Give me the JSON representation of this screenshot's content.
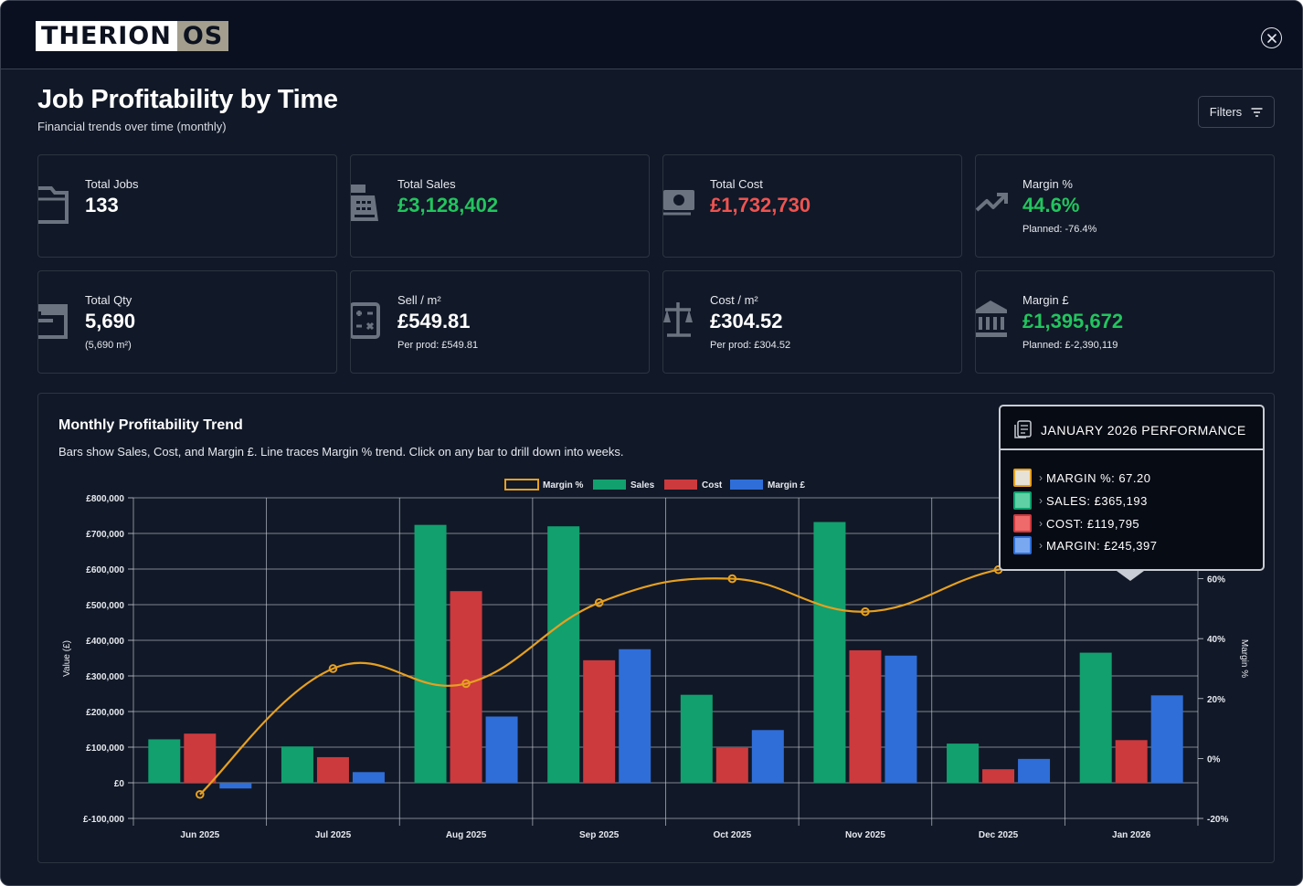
{
  "app": {
    "logo_left": "THERION",
    "logo_right": "OS"
  },
  "header": {
    "title": "Job Profitability by Time",
    "subtitle": "Financial trends over time (monthly)",
    "filters_label": "Filters"
  },
  "cards": [
    {
      "label": "Total Jobs",
      "value": "133",
      "sub": "",
      "icon": "folder-icon"
    },
    {
      "label": "Total Sales",
      "value": "£3,128,402",
      "sub": "",
      "icon": "cash-register-icon"
    },
    {
      "label": "Total Cost",
      "value": "£1,732,730",
      "sub": "",
      "icon": "money-icon"
    },
    {
      "label": "Margin %",
      "value": "44.6%",
      "sub": "Planned: -76.4%",
      "icon": "trend-up-icon"
    },
    {
      "label": "Total Qty",
      "value": "5,690",
      "sub": "(5,690 m²)",
      "icon": "box-icon"
    },
    {
      "label": "Sell / m²",
      "value": "£549.81",
      "sub": "Per prod: £549.81",
      "icon": "calculator-icon"
    },
    {
      "label": "Cost / m²",
      "value": "£304.52",
      "sub": "Per prod: £304.52",
      "icon": "scale-icon"
    },
    {
      "label": "Margin £",
      "value": "£1,395,672",
      "sub": "Planned: £-2,390,119",
      "icon": "bank-icon"
    }
  ],
  "chart_panel": {
    "title": "Monthly Profitability Trend",
    "subtitle": "Bars show Sales, Cost, and Margin £. Line traces Margin % trend. Click on any bar to drill down into weeks."
  },
  "colors": {
    "sales": "#12a06e",
    "cost": "#cc3a3d",
    "margin": "#2f6ed8",
    "margin_pct": "#e6a020",
    "grid": "#c9ced6",
    "axis_text": "#e6e9ef"
  },
  "chart_data": {
    "type": "bar",
    "title": "Monthly Profitability Trend",
    "categories": [
      "Jun 2025",
      "Jul 2025",
      "Aug 2025",
      "Sep 2025",
      "Oct 2025",
      "Nov 2025",
      "Dec 2025",
      "Jan 2026"
    ],
    "series": [
      {
        "name": "Sales",
        "type": "bar",
        "axis": "left",
        "values": [
          122000,
          102000,
          724000,
          720000,
          247000,
          732000,
          110000,
          365193
        ]
      },
      {
        "name": "Cost",
        "type": "bar",
        "axis": "left",
        "values": [
          138000,
          72000,
          538000,
          344000,
          98000,
          372000,
          38000,
          119795
        ]
      },
      {
        "name": "Margin £",
        "type": "bar",
        "axis": "left",
        "values": [
          -16000,
          30000,
          186000,
          375000,
          148000,
          357000,
          67000,
          245397
        ]
      },
      {
        "name": "Margin %",
        "type": "line",
        "axis": "right",
        "values": [
          -12,
          30,
          25,
          52,
          60,
          49,
          63,
          67.2
        ]
      }
    ],
    "legend": [
      "Margin %",
      "Sales",
      "Cost",
      "Margin £"
    ],
    "legend_position": "top-center",
    "ylabel": "Value (£)",
    "y2label": "Margin %",
    "ylim": [
      -100000,
      800000
    ],
    "yticks": [
      "£800,000",
      "£700,000",
      "£600,000",
      "£500,000",
      "£400,000",
      "£300,000",
      "£200,000",
      "£100,000",
      "£0",
      "£-100,000"
    ],
    "y2lim": [
      -20,
      87
    ],
    "y2ticks": [
      "60%",
      "40%",
      "20%",
      "0%",
      "-20%"
    ],
    "grid": true
  },
  "tooltip": {
    "title": "JANUARY 2026 PERFORMANCE",
    "rows": [
      {
        "label": "MARGIN %: 67.20",
        "swatch": "#e6a020",
        "fill": "#e6e2d8"
      },
      {
        "label": "SALES: £365,193",
        "swatch": "#12a06e",
        "fill": "#5fd0a6"
      },
      {
        "label": "COST: £119,795",
        "swatch": "#cc3a3d",
        "fill": "#ef6a6a"
      },
      {
        "label": "MARGIN: £245,397",
        "swatch": "#2f6ed8",
        "fill": "#7aa8f0"
      }
    ]
  }
}
